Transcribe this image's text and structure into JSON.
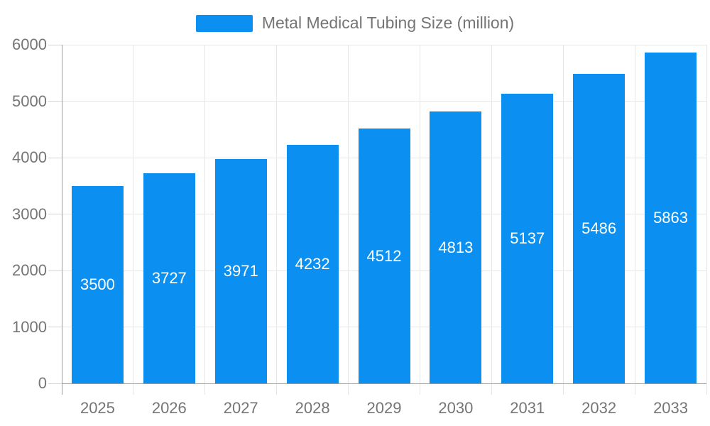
{
  "colors": {
    "bar": "#0b90f2",
    "grid": "#e6e6e6",
    "axis_line": "#9e9e9e",
    "tick": "#d2d2d2",
    "axis_text": "#757575",
    "value_text": "#ffffff",
    "background": "#ffffff"
  },
  "chart_data": {
    "type": "bar",
    "title": "Metal Medical Tubing Size (million)",
    "legend_entries": [
      "Metal Medical Tubing Size (million)"
    ],
    "legend_position": "top-center",
    "categories": [
      "2025",
      "2026",
      "2027",
      "2028",
      "2029",
      "2030",
      "2031",
      "2032",
      "2033"
    ],
    "series": [
      {
        "name": "Metal Medical Tubing Size (million)",
        "values": [
          3500,
          3727,
          3971,
          4232,
          4512,
          4813,
          5137,
          5486,
          5863
        ]
      }
    ],
    "value_labels": [
      3500,
      3727,
      3971,
      4232,
      4512,
      4813,
      5137,
      5486,
      5863
    ],
    "value_label_position": "inside-center",
    "xlabel": "",
    "ylabel": "",
    "ylim": [
      0,
      6000
    ],
    "yticks": [
      0,
      1000,
      2000,
      3000,
      4000,
      5000,
      6000
    ],
    "grid": true
  }
}
